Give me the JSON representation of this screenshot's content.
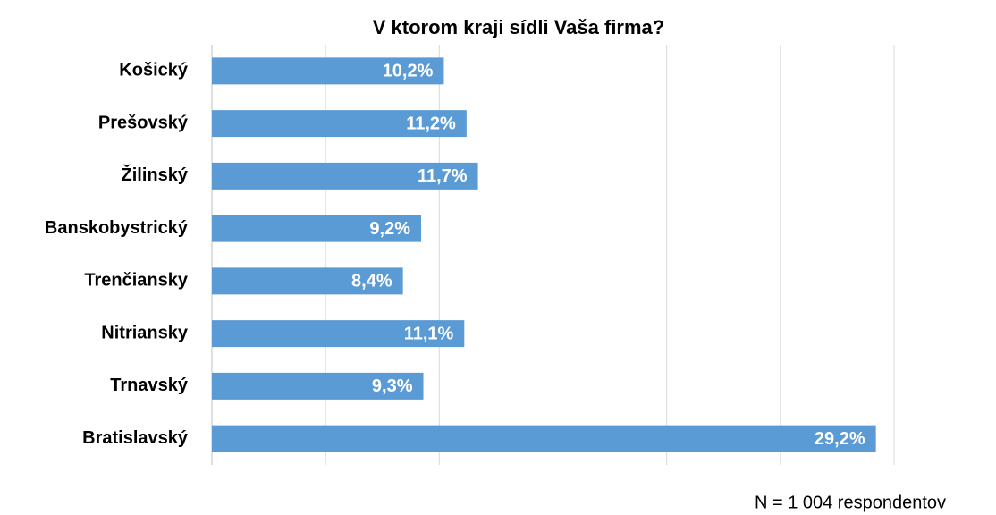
{
  "chart_data": {
    "type": "bar",
    "orientation": "horizontal",
    "title": "V ktorom kraji sídli Vaša firma?",
    "categories": [
      "Košický",
      "Prešovský",
      "Žilinský",
      "Banskobystrický",
      "Trenčiansky",
      "Nitriansky",
      "Trnavský",
      "Bratislavský"
    ],
    "values": [
      10.2,
      11.2,
      11.7,
      9.2,
      8.4,
      11.1,
      9.3,
      29.2
    ],
    "value_labels": [
      "10,2%",
      "11,2%",
      "11,7%",
      "9,2%",
      "8,4%",
      "11,1%",
      "9,3%",
      "29,2%"
    ],
    "color": "#5b9bd5",
    "xlim": [
      0,
      30
    ],
    "xticks": [
      0,
      5,
      10,
      15,
      20,
      25,
      30
    ],
    "grid": true,
    "annotation": "N = 1 004 respondentov"
  }
}
